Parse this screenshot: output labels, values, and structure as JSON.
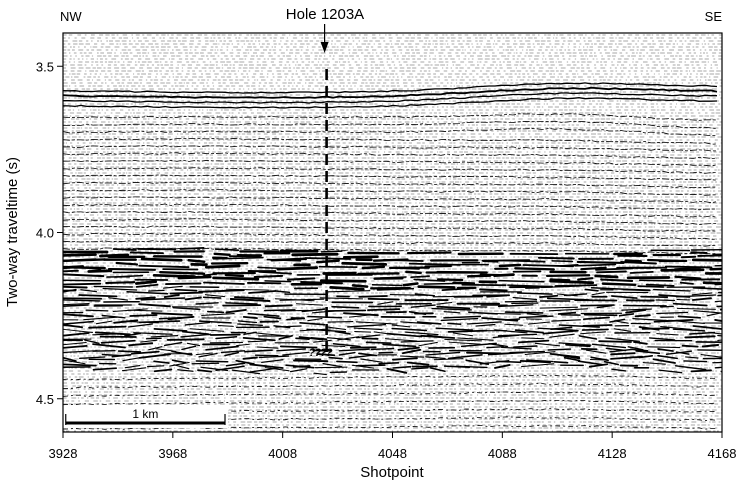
{
  "figure": {
    "corner_left": "NW",
    "corner_right": "SE",
    "hole_label": "Hole 1203A",
    "scale_bar_label": "1 km",
    "depth_marker": "????",
    "colors": {
      "ink": "#000000",
      "background": "#ffffff",
      "noise": "#8a8a8a"
    }
  },
  "axes": {
    "x_label": "Shotpoint",
    "y_label": "Two-way traveltime (s)",
    "x_range": [
      3928,
      4168
    ],
    "y_range": [
      3.4,
      4.6
    ],
    "x_ticks": [
      {
        "value": 3928,
        "label": "3928"
      },
      {
        "value": 3968,
        "label": "3968"
      },
      {
        "value": 4008,
        "label": "4008"
      },
      {
        "value": 4048,
        "label": "4048"
      },
      {
        "value": 4088,
        "label": "4088"
      },
      {
        "value": 4128,
        "label": "4128"
      },
      {
        "value": 4168,
        "label": "4168"
      }
    ],
    "y_ticks": [
      {
        "value": 3.5,
        "label": "3.5"
      },
      {
        "value": 4.0,
        "label": "4.0"
      },
      {
        "value": 4.5,
        "label": "4.5"
      }
    ]
  },
  "hole": {
    "shotpoint": 4024,
    "top_time": 3.4,
    "bottom_time": 4.36
  },
  "scale_bar": {
    "start_shotpoint": 3929,
    "end_shotpoint": 3987
  }
}
